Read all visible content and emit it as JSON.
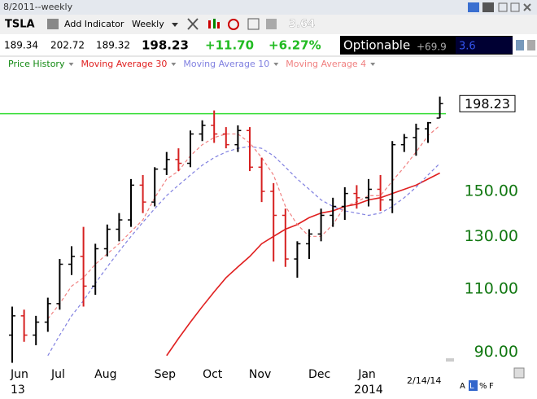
{
  "header": {
    "window_title": "8/2011--weekly",
    "symbol": "TSLA",
    "add_indicator": "Add Indicator",
    "timeframe": "Weekly",
    "toolbar_value": "3.64",
    "open": "189.34",
    "high": "202.72",
    "low": "189.32",
    "last": "198.23",
    "change": "+11.70",
    "change_pct": "+6.27%",
    "optionable": "Optionable",
    "extra1": "+69.9",
    "extra2": "3.6",
    "footer_date": "2/14/14",
    "footer_buttons": [
      "A",
      "L",
      "%",
      "F"
    ]
  },
  "chart_data": {
    "type": "ohlc",
    "price_name": "Price History",
    "log_scale": true,
    "up_color": "#000000",
    "down_color": "#d62020",
    "categories": [
      "Jun",
      null,
      null,
      null,
      "Jul",
      null,
      null,
      null,
      "Aug",
      null,
      null,
      null,
      null,
      "Sep",
      null,
      null,
      null,
      "Oct",
      null,
      null,
      null,
      "Nov",
      null,
      null,
      null,
      null,
      "Dec",
      null,
      null,
      null,
      "Jan",
      null,
      null,
      null,
      null,
      null,
      null
    ],
    "category_years": [
      "13",
      null,
      null,
      null,
      null,
      null,
      null,
      null,
      null,
      null,
      null,
      null,
      null,
      null,
      null,
      null,
      null,
      null,
      null,
      null,
      null,
      null,
      null,
      null,
      null,
      null,
      null,
      null,
      null,
      null,
      "2014",
      null,
      null,
      null,
      null,
      null,
      null
    ],
    "open": [
      95,
      101,
      95,
      99,
      105,
      119,
      122,
      111,
      125,
      133,
      137,
      153,
      145,
      161,
      166,
      164,
      180,
      185,
      180,
      174,
      182,
      162,
      150,
      139,
      121,
      127,
      131,
      139,
      143,
      149,
      147,
      151,
      146,
      174,
      178,
      183,
      189.34
    ],
    "high": [
      104,
      103,
      101,
      107,
      121,
      126,
      134,
      127,
      135,
      140,
      156,
      158,
      162,
      170,
      172,
      182,
      188,
      194,
      184,
      185,
      184,
      167,
      154,
      142,
      128,
      133,
      142,
      147,
      152,
      153,
      156,
      158,
      176,
      180,
      186,
      187,
      202.72
    ],
    "low": [
      87,
      93,
      92,
      96,
      103,
      115,
      104,
      108,
      122,
      128,
      134,
      140,
      143,
      158,
      160,
      162,
      176,
      175,
      172,
      170,
      160,
      145,
      120,
      118,
      114,
      121,
      128,
      134,
      137,
      142,
      143,
      141,
      140,
      170,
      168,
      175,
      189.32
    ],
    "close": [
      101,
      95,
      99,
      105,
      119,
      122,
      111,
      125,
      133,
      137,
      153,
      145,
      161,
      166,
      164,
      180,
      185,
      180,
      174,
      182,
      162,
      150,
      139,
      121,
      127,
      131,
      139,
      143,
      149,
      147,
      151,
      146,
      174,
      178,
      183,
      186.53,
      198.23
    ],
    "series": [
      {
        "name": "Moving Average 30",
        "color": "#e02020",
        "dashed": false,
        "values": [
          null,
          null,
          null,
          null,
          null,
          null,
          null,
          null,
          null,
          null,
          null,
          null,
          null,
          89,
          94,
          99,
          104,
          109,
          114,
          118,
          122,
          127,
          130,
          133,
          135,
          138,
          140,
          141,
          143,
          144,
          146,
          147,
          149,
          151,
          153,
          156,
          159
        ]
      },
      {
        "name": "Moving Average 10",
        "color": "#8080e0",
        "dashed": true,
        "values": [
          null,
          null,
          null,
          89,
          95,
          101,
          106,
          112,
          118,
          124,
          130,
          136,
          142,
          148,
          153,
          158,
          163,
          167,
          170,
          172,
          173,
          172,
          168,
          162,
          156,
          151,
          146,
          143,
          141,
          140,
          139,
          140,
          143,
          147,
          152,
          158,
          164
        ]
      },
      {
        "name": "Moving Average 4",
        "color": "#f08080",
        "dashed": true,
        "values": [
          null,
          null,
          null,
          100,
          105,
          111,
          114,
          119,
          123,
          127,
          132,
          137,
          147,
          156,
          160,
          168,
          174,
          178,
          180,
          180,
          175,
          167,
          158,
          143,
          135,
          130,
          130,
          135,
          143,
          145,
          148,
          148,
          155,
          162,
          170,
          179,
          185
        ]
      }
    ],
    "hline": {
      "value": 192,
      "color": "#33dd33"
    },
    "ylim": [
      86,
      210
    ],
    "yticks": [
      {
        "value": 90,
        "label": "90.00"
      },
      {
        "value": 110,
        "label": "110.00"
      },
      {
        "value": 130,
        "label": "130.00"
      },
      {
        "value": 150,
        "label": "150.00"
      }
    ]
  }
}
